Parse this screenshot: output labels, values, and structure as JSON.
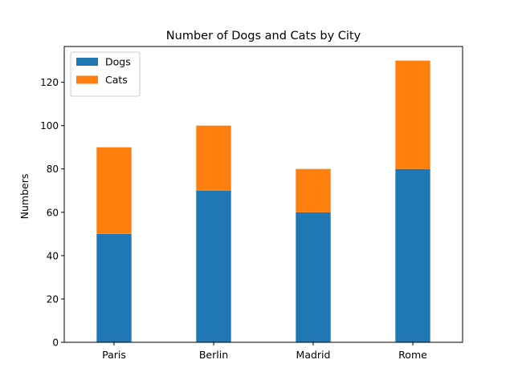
{
  "chart_data": {
    "type": "bar",
    "stacked": true,
    "title": "Number of Dogs and Cats by City",
    "xlabel": "",
    "ylabel": "Numbers",
    "categories": [
      "Paris",
      "Berlin",
      "Madrid",
      "Rome"
    ],
    "series": [
      {
        "name": "Dogs",
        "color": "#1f77b4",
        "values": [
          50,
          70,
          60,
          80
        ]
      },
      {
        "name": "Cats",
        "color": "#ff7f0e",
        "values": [
          40,
          30,
          20,
          50
        ]
      }
    ],
    "ylim": [
      0,
      136.5
    ],
    "yticks": [
      0,
      20,
      40,
      60,
      80,
      100,
      120
    ],
    "grid": false,
    "legend": "upper-left"
  }
}
